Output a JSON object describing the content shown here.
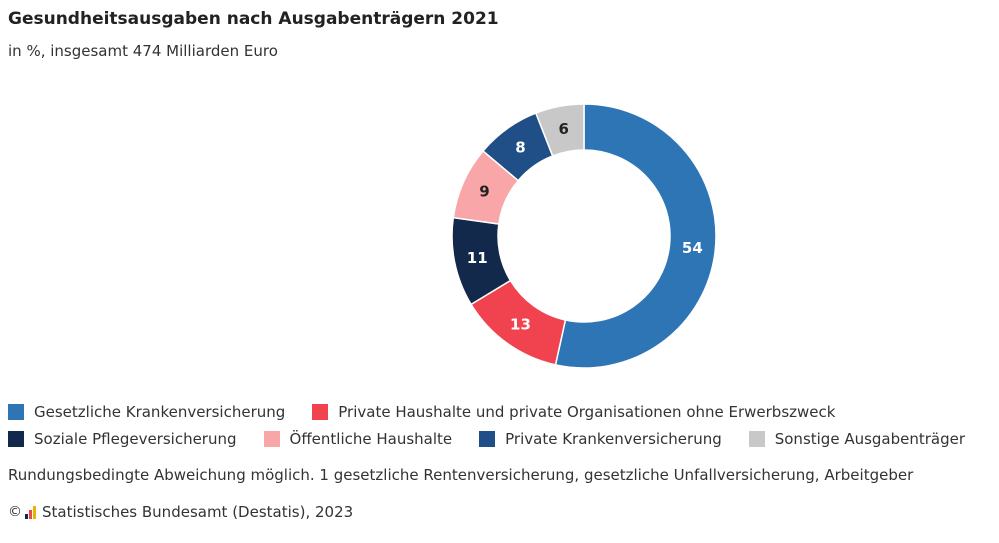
{
  "title": "Gesundheitsausgaben nach Ausgabenträgern 2021",
  "subtitle": "in %, insgesamt 474 Milliarden Euro",
  "chart_data": {
    "type": "pie",
    "variant": "donut",
    "title": "Gesundheitsausgaben nach Ausgabenträgern 2021",
    "subtitle": "in %, insgesamt 474 Milliarden Euro",
    "slices": [
      {
        "name": "Gesetzliche Krankenversicherung",
        "value": 54,
        "color": "#2e75b6"
      },
      {
        "name": "Private Haushalte und private Organisationen ohne Erwerbszweck",
        "value": 13,
        "color": "#f0434f"
      },
      {
        "name": "Soziale Pflegeversicherung",
        "value": 11,
        "color": "#13294b"
      },
      {
        "name": "Öffentliche Haushalte",
        "value": 9,
        "color": "#f8a6a8"
      },
      {
        "name": "Private Krankenversicherung",
        "value": 8,
        "color": "#1f4f86"
      },
      {
        "name": "Sonstige Ausgabenträger",
        "value": 6,
        "color": "#c8c8c8"
      }
    ],
    "legend_position": "bottom"
  },
  "footnote": "Rundungsbedingte Abweichung möglich. 1 gesetzliche Rentenversicherung, gesetzliche Unfallversicherung, Arbeitgeber",
  "source": {
    "copyright": "©",
    "text": "Statistisches Bundesamt (Destatis), 2023"
  }
}
